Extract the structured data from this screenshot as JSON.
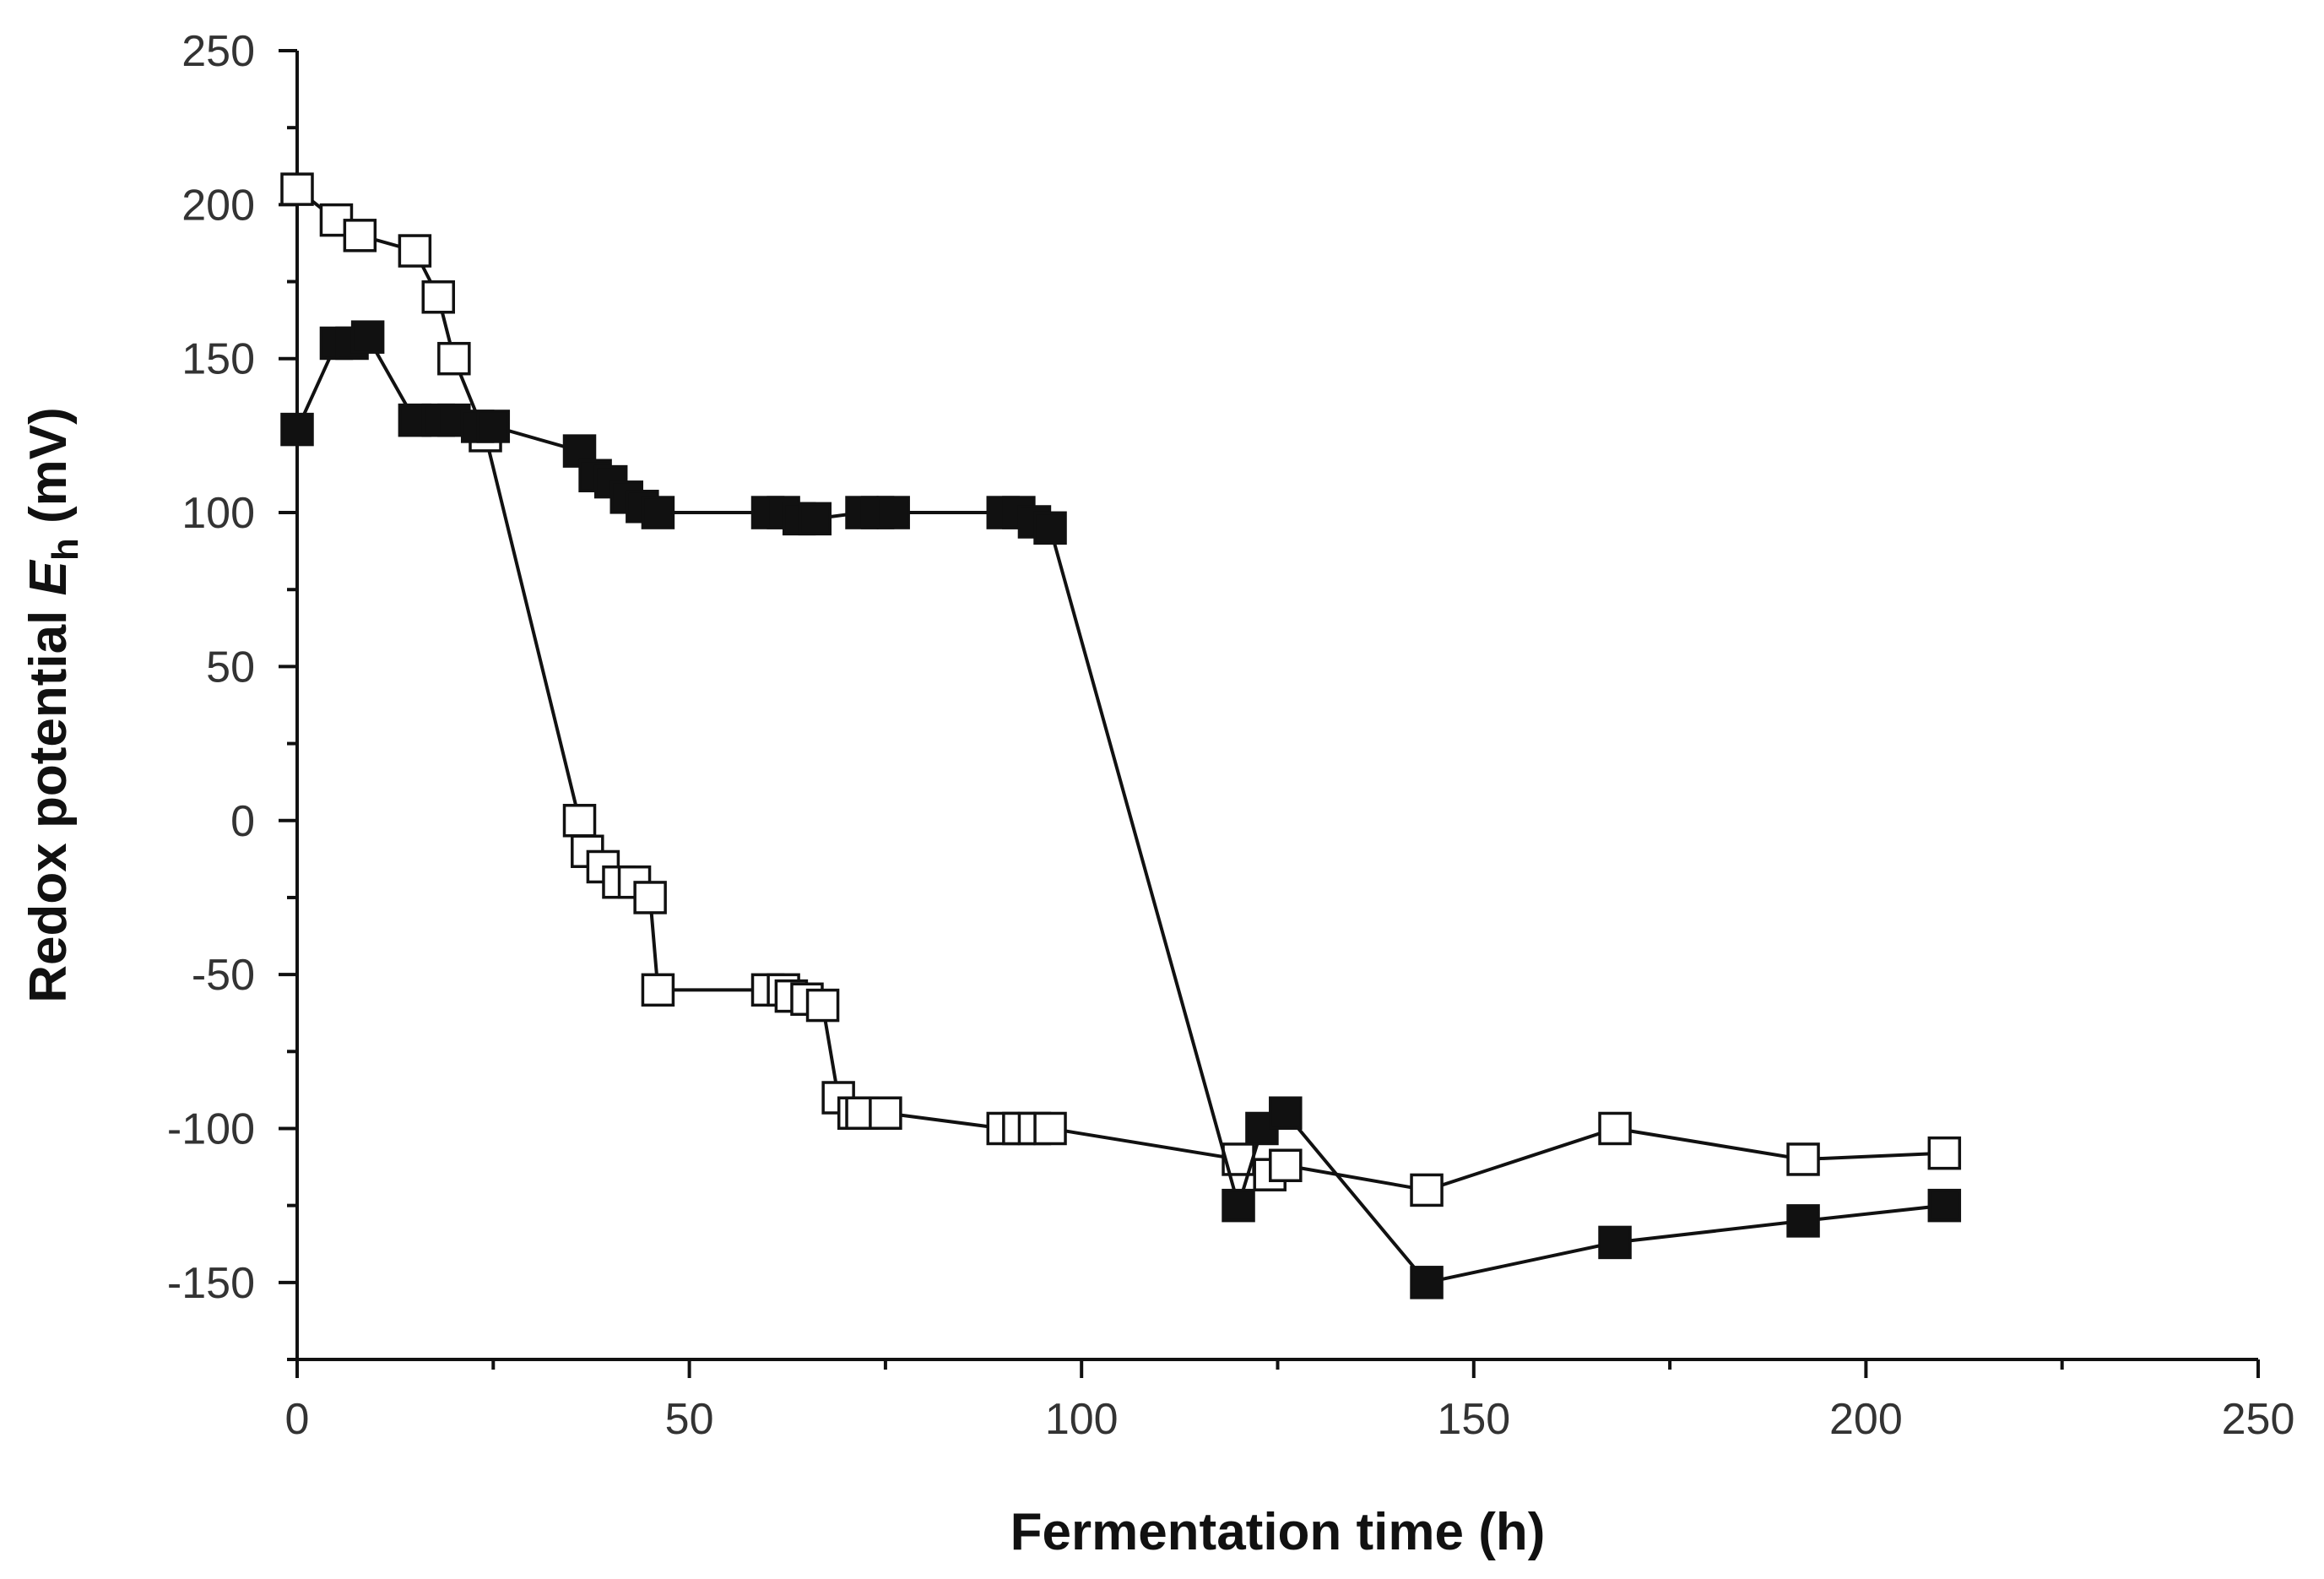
{
  "chart_data": {
    "type": "line",
    "title": "",
    "xlabel": "Fermentation time (h)",
    "ylabel": {
      "main": "Redox potential ",
      "symbol": "E",
      "subscript": "h",
      "unit": " (mV)"
    },
    "xlim": [
      0,
      250
    ],
    "ylim": [
      -175,
      250
    ],
    "xticks": [
      0,
      50,
      100,
      150,
      200,
      250
    ],
    "yticks": [
      250,
      200,
      150,
      100,
      50,
      0,
      -50,
      -100,
      -150
    ],
    "xtick_labels": [
      "0",
      "50",
      "100",
      "150",
      "200",
      "250"
    ],
    "ytick_labels": [
      "250",
      "200",
      "150",
      "100",
      "50",
      "0",
      "-50",
      "-100",
      "-150"
    ],
    "grid": false,
    "series": [
      {
        "name": "open squares",
        "marker": "open-square",
        "x": [
          0,
          5,
          8,
          15,
          18,
          20,
          24,
          36,
          37,
          39,
          41,
          43,
          45,
          46,
          60,
          62,
          63,
          65,
          67,
          69,
          71,
          72,
          75,
          90,
          92,
          94,
          96,
          120,
          124,
          126,
          144,
          168,
          192,
          210
        ],
        "y": [
          205,
          195,
          190,
          185,
          170,
          150,
          125,
          0,
          -10,
          -15,
          -20,
          -20,
          -25,
          -55,
          -55,
          -55,
          -57,
          -58,
          -60,
          -90,
          -95,
          -95,
          -95,
          -100,
          -100,
          -100,
          -100,
          -110,
          -115,
          -112,
          -120,
          -100,
          -110,
          -108
        ]
      },
      {
        "name": "filled squares",
        "marker": "filled-square",
        "x": [
          0,
          5,
          7,
          9,
          15,
          18,
          20,
          23,
          25,
          36,
          38,
          40,
          42,
          44,
          46,
          60,
          62,
          64,
          66,
          72,
          74,
          76,
          90,
          92,
          94,
          96,
          120,
          123,
          126,
          144,
          168,
          192,
          210
        ],
        "y": [
          127,
          155,
          155,
          157,
          130,
          130,
          130,
          128,
          128,
          120,
          112,
          110,
          105,
          102,
          100,
          100,
          100,
          98,
          98,
          100,
          100,
          100,
          100,
          100,
          97,
          95,
          -125,
          -100,
          -95,
          -150,
          -137,
          -130,
          -125
        ]
      }
    ]
  }
}
